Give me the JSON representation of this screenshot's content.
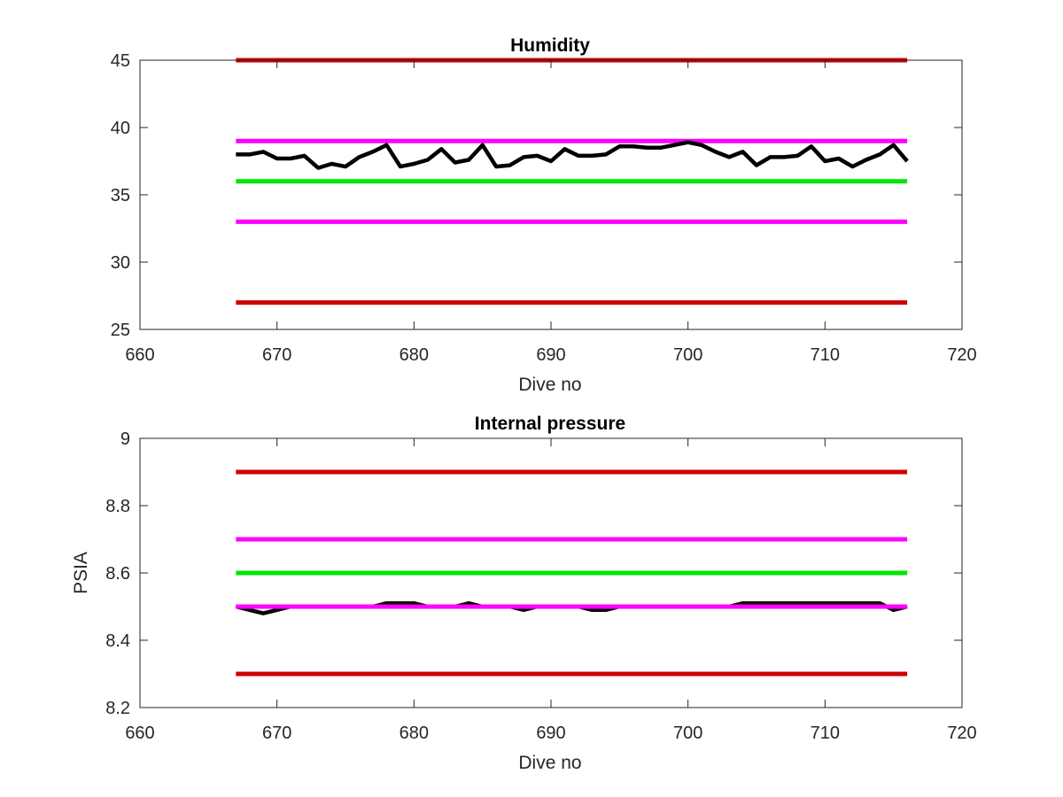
{
  "colors": {
    "limit": "#cc0000",
    "warning": "#ff00ff",
    "nominal": "#00e600",
    "measurement": "#000000"
  },
  "chart_data": [
    {
      "type": "line",
      "title": "Humidity",
      "xlabel": "Dive no",
      "ylabel": "",
      "xlim": [
        660,
        720
      ],
      "ylim": [
        25,
        45
      ],
      "xticks": [
        660,
        670,
        680,
        690,
        700,
        710,
        720
      ],
      "yticks": [
        25,
        30,
        35,
        40,
        45
      ],
      "grid": false,
      "series": [
        {
          "role": "limit",
          "color": "#cc0000",
          "x": [
            667,
            716
          ],
          "y": [
            45,
            45
          ]
        },
        {
          "role": "warning",
          "color": "#ff00ff",
          "x": [
            667,
            716
          ],
          "y": [
            39,
            39
          ]
        },
        {
          "role": "nominal",
          "color": "#00e600",
          "x": [
            667,
            716
          ],
          "y": [
            36,
            36
          ]
        },
        {
          "role": "warning",
          "color": "#ff00ff",
          "x": [
            667,
            716
          ],
          "y": [
            33,
            33
          ]
        },
        {
          "role": "limit",
          "color": "#cc0000",
          "x": [
            667,
            716
          ],
          "y": [
            27,
            27
          ]
        },
        {
          "role": "measurement",
          "color": "#000000",
          "x": [
            667,
            668,
            669,
            670,
            671,
            672,
            673,
            674,
            675,
            676,
            677,
            678,
            679,
            680,
            681,
            682,
            683,
            684,
            685,
            686,
            687,
            688,
            689,
            690,
            691,
            692,
            693,
            694,
            695,
            696,
            697,
            698,
            699,
            700,
            701,
            702,
            703,
            704,
            705,
            706,
            707,
            708,
            709,
            710,
            711,
            712,
            713,
            714,
            715,
            716
          ],
          "y": [
            38.0,
            38.0,
            38.2,
            37.7,
            37.7,
            37.9,
            37.0,
            37.3,
            37.1,
            37.8,
            38.2,
            38.7,
            37.1,
            37.3,
            37.6,
            38.4,
            37.4,
            37.6,
            38.7,
            37.1,
            37.2,
            37.8,
            37.9,
            37.5,
            38.4,
            37.9,
            37.9,
            38.0,
            38.6,
            38.6,
            38.5,
            38.5,
            38.7,
            38.9,
            38.7,
            38.2,
            37.8,
            38.2,
            37.2,
            37.8,
            37.8,
            37.9,
            38.6,
            37.5,
            37.7,
            37.1,
            37.6,
            38.0,
            38.7,
            37.5
          ]
        }
      ]
    },
    {
      "type": "line",
      "title": "Internal pressure",
      "xlabel": "Dive no",
      "ylabel": "PSIA",
      "xlim": [
        660,
        720
      ],
      "ylim": [
        8.2,
        9
      ],
      "xticks": [
        660,
        670,
        680,
        690,
        700,
        710,
        720
      ],
      "yticks": [
        8.2,
        8.4,
        8.6,
        8.8,
        9
      ],
      "grid": false,
      "series": [
        {
          "role": "limit",
          "color": "#cc0000",
          "x": [
            667,
            716
          ],
          "y": [
            8.9,
            8.9
          ]
        },
        {
          "role": "warning",
          "color": "#ff00ff",
          "x": [
            667,
            716
          ],
          "y": [
            8.7,
            8.7
          ]
        },
        {
          "role": "nominal",
          "color": "#00e600",
          "x": [
            667,
            716
          ],
          "y": [
            8.6,
            8.6
          ]
        },
        {
          "role": "measurement",
          "color": "#000000",
          "x": [
            667,
            668,
            669,
            670,
            671,
            672,
            673,
            674,
            675,
            676,
            677,
            678,
            679,
            680,
            681,
            682,
            683,
            684,
            685,
            686,
            687,
            688,
            689,
            690,
            691,
            692,
            693,
            694,
            695,
            696,
            697,
            698,
            699,
            700,
            701,
            702,
            703,
            704,
            705,
            706,
            707,
            708,
            709,
            710,
            711,
            712,
            713,
            714,
            715,
            716
          ],
          "y": [
            8.5,
            8.49,
            8.48,
            8.49,
            8.5,
            8.5,
            8.5,
            8.5,
            8.5,
            8.5,
            8.5,
            8.51,
            8.51,
            8.51,
            8.5,
            8.5,
            8.5,
            8.51,
            8.5,
            8.5,
            8.5,
            8.49,
            8.5,
            8.5,
            8.5,
            8.5,
            8.49,
            8.49,
            8.5,
            8.5,
            8.5,
            8.5,
            8.5,
            8.5,
            8.5,
            8.5,
            8.5,
            8.51,
            8.51,
            8.51,
            8.51,
            8.51,
            8.51,
            8.51,
            8.51,
            8.51,
            8.51,
            8.51,
            8.49,
            8.5
          ]
        },
        {
          "role": "warning",
          "color": "#ff00ff",
          "x": [
            667,
            716
          ],
          "y": [
            8.5,
            8.5
          ]
        },
        {
          "role": "limit",
          "color": "#cc0000",
          "x": [
            667,
            716
          ],
          "y": [
            8.3,
            8.3
          ]
        }
      ]
    }
  ]
}
